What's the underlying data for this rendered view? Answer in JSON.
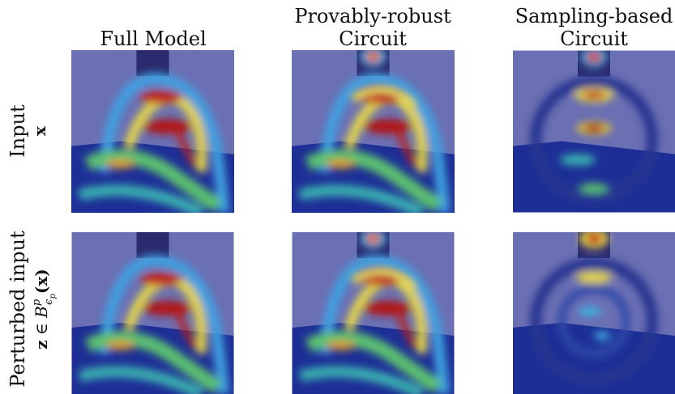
{
  "columns": [
    {
      "title_lines": [
        "Full Model"
      ]
    },
    {
      "title_lines": [
        "Provably-robust",
        "Circuit"
      ]
    },
    {
      "title_lines": [
        "Sampling-based",
        "Circuit"
      ]
    }
  ],
  "rows": [
    {
      "label": "Input",
      "math": {
        "var": "x"
      }
    },
    {
      "label": "Perturbed input",
      "math": {
        "var": "z",
        "rel": " ∈ ",
        "set": "B",
        "sub": "ϵ",
        "subsub": "p",
        "sup": "p",
        "arg": "(x)"
      }
    }
  ]
}
